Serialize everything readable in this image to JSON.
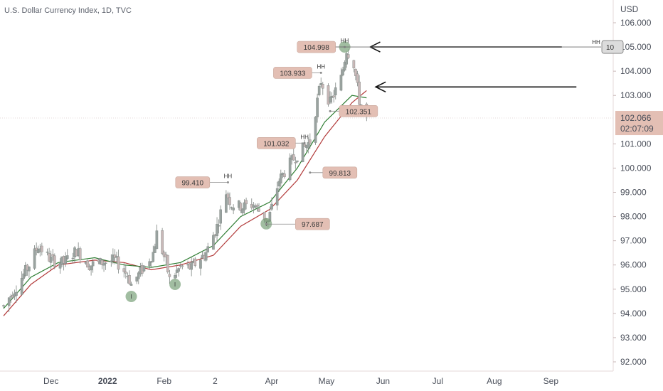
{
  "chart_data": {
    "type": "candlestick",
    "title": "U.S. Dollar Currency Index, 1D, TVC",
    "currency": "USD",
    "y_axis": {
      "ticks": [
        "106.000",
        "105.000",
        "104.000",
        "103.000",
        "101.000",
        "100.000",
        "99.000",
        "98.000",
        "97.000",
        "96.000",
        "95.000",
        "94.000",
        "93.000",
        "92.000"
      ],
      "ylim": [
        91.6,
        106.5
      ]
    },
    "x_axis": {
      "ticks": [
        {
          "label": "Dec",
          "x": "2021-12-01",
          "bold": false
        },
        {
          "label": "2022",
          "x": "2022-01-01",
          "bold": true
        },
        {
          "label": "Feb",
          "x": "2022-02-01",
          "bold": false
        },
        {
          "label": "2",
          "x": "2022-03-01",
          "bold": false
        },
        {
          "label": "Apr",
          "x": "2022-04-01",
          "bold": false
        },
        {
          "label": "May",
          "x": "2022-05-01",
          "bold": false
        },
        {
          "label": "Jun",
          "x": "2022-06-01",
          "bold": false
        },
        {
          "label": "Jul",
          "x": "2022-07-01",
          "bold": false
        },
        {
          "label": "Aug",
          "x": "2022-08-01",
          "bold": false
        },
        {
          "label": "Sep",
          "x": "2022-09-01",
          "bold": false
        }
      ]
    },
    "last_price": {
      "value": "102.066",
      "countdown": "02:07:09",
      "price": 102.066
    },
    "right_edge_tag": {
      "label": "10",
      "price": 105.0
    },
    "right_edge_hh": "HH",
    "series_path": [
      [
        "2021-11-05",
        94.3
      ],
      [
        "2021-11-12",
        95.1
      ],
      [
        "2021-11-19",
        96.0
      ],
      [
        "2021-11-24",
        96.8
      ],
      [
        "2021-12-01",
        96.2
      ],
      [
        "2021-12-08",
        96.1
      ],
      [
        "2021-12-15",
        96.6
      ],
      [
        "2021-12-22",
        96.0
      ],
      [
        "2021-12-29",
        96.1
      ],
      [
        "2022-01-05",
        96.2
      ],
      [
        "2022-01-12",
        95.6
      ],
      [
        "2022-01-14",
        95.2
      ],
      [
        "2022-01-19",
        95.7
      ],
      [
        "2022-01-26",
        96.5
      ],
      [
        "2022-01-28",
        97.3
      ],
      [
        "2022-02-02",
        96.1
      ],
      [
        "2022-02-04",
        95.4
      ],
      [
        "2022-02-10",
        95.9
      ],
      [
        "2022-02-16",
        95.9
      ],
      [
        "2022-02-24",
        96.5
      ],
      [
        "2022-03-02",
        97.6
      ],
      [
        "2022-03-07",
        99.0
      ],
      [
        "2022-03-10",
        98.5
      ],
      [
        "2022-03-16",
        98.4
      ],
      [
        "2022-03-22",
        98.5
      ],
      [
        "2022-03-30",
        97.8
      ],
      [
        "2022-04-05",
        99.5
      ],
      [
        "2022-04-12",
        100.3
      ],
      [
        "2022-04-18",
        100.8
      ],
      [
        "2022-04-22",
        101.1
      ],
      [
        "2022-04-28",
        103.6
      ],
      [
        "2022-05-03",
        102.7
      ],
      [
        "2022-05-09",
        103.7
      ],
      [
        "2022-05-12",
        104.9
      ],
      [
        "2022-05-16",
        104.3
      ],
      [
        "2022-05-19",
        102.8
      ],
      [
        "2022-05-23",
        102.1
      ]
    ],
    "moving_averages": [
      {
        "color": "#b23a3a",
        "points": [
          [
            "2021-11-05",
            93.9
          ],
          [
            "2021-11-20",
            95.2
          ],
          [
            "2021-12-05",
            96.0
          ],
          [
            "2021-12-25",
            96.2
          ],
          [
            "2022-01-10",
            96.1
          ],
          [
            "2022-01-25",
            95.8
          ],
          [
            "2022-02-10",
            96.0
          ],
          [
            "2022-02-28",
            96.4
          ],
          [
            "2022-03-15",
            97.6
          ],
          [
            "2022-03-31",
            98.3
          ],
          [
            "2022-04-15",
            99.5
          ],
          [
            "2022-04-30",
            101.3
          ],
          [
            "2022-05-15",
            102.7
          ],
          [
            "2022-05-23",
            103.2
          ]
        ]
      },
      {
        "color": "#2e7d32",
        "points": [
          [
            "2021-11-05",
            94.2
          ],
          [
            "2021-11-20",
            95.5
          ],
          [
            "2021-12-05",
            96.1
          ],
          [
            "2021-12-25",
            96.3
          ],
          [
            "2022-01-10",
            96.0
          ],
          [
            "2022-01-25",
            95.9
          ],
          [
            "2022-02-10",
            96.1
          ],
          [
            "2022-02-28",
            96.8
          ],
          [
            "2022-03-15",
            98.0
          ],
          [
            "2022-03-31",
            98.6
          ],
          [
            "2022-04-15",
            100.0
          ],
          [
            "2022-04-30",
            101.9
          ],
          [
            "2022-05-15",
            103.0
          ],
          [
            "2022-05-23",
            102.9
          ]
        ]
      }
    ],
    "annotations": [
      {
        "text": "104.998",
        "date": "2022-05-11",
        "price": 105.0,
        "label_date": "2022-05-06",
        "hh": "HH"
      },
      {
        "text": "103.933",
        "date": "2022-04-28",
        "price": 103.933,
        "label_date": "2022-04-23",
        "hh": "HH"
      },
      {
        "text": "102.351",
        "date": "2022-05-03",
        "price": 102.351,
        "label_date": "2022-05-08",
        "hh": ""
      },
      {
        "text": "101.032",
        "date": "2022-04-19",
        "price": 101.032,
        "label_date": "2022-04-14",
        "hh": "HH"
      },
      {
        "text": "99.813",
        "date": "2022-04-22",
        "price": 99.813,
        "label_date": "2022-04-29",
        "hh": ""
      },
      {
        "text": "99.410",
        "date": "2022-03-08",
        "price": 99.41,
        "label_date": "2022-02-26",
        "hh": "HH"
      },
      {
        "text": "97.687",
        "date": "2022-03-29",
        "price": 97.687,
        "label_date": "2022-04-14",
        "hh": ""
      }
    ],
    "circles": [
      {
        "date": "2022-01-14",
        "price": 94.7,
        "label": "l"
      },
      {
        "date": "2022-02-07",
        "price": 95.2,
        "label": "l"
      },
      {
        "date": "2022-03-29",
        "price": 97.7,
        "label": "l"
      },
      {
        "date": "2022-05-11",
        "price": 105.0,
        "label": ""
      }
    ],
    "arrows": [
      {
        "from_date": "2022-09-07",
        "to_date": "2022-05-25",
        "price": 105.0
      },
      {
        "from_date": "2022-09-15",
        "to_date": "2022-05-28",
        "price": 103.35
      }
    ],
    "colors": {
      "up": "#9aa3a0",
      "down": "#c9b8b8",
      "grid_line": "#e5d9d9",
      "label_bg": "#e3bfb4",
      "circle": "#6e9a6e"
    }
  }
}
